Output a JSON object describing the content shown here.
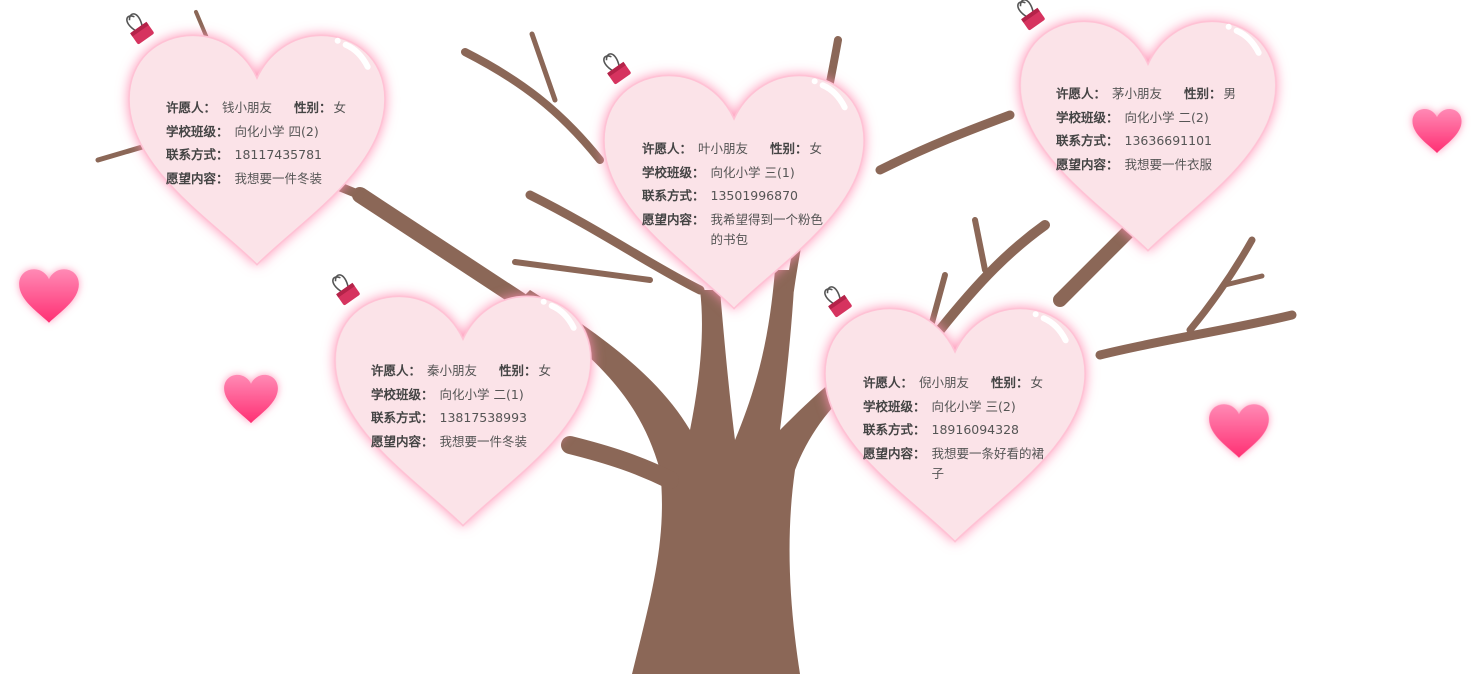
{
  "labels": {
    "wisher": "许愿人：",
    "gender": "性别：",
    "class": "学校班级：",
    "contact": "联系方式：",
    "wish": "愿望内容："
  },
  "colors": {
    "trunk": "#8b6757",
    "heart_fill": "#fbe3e8",
    "heart_glow": "#ff8fb3",
    "deco_heart": "#ff4f8e",
    "clip": "#d6335f"
  },
  "wishes": [
    {
      "name": "钱小朋友",
      "gender": "女",
      "class": "向化小学 四(2)",
      "contact": "18117435781",
      "wish": "我想要一件冬装"
    },
    {
      "name": "叶小朋友",
      "gender": "女",
      "class": "向化小学 三(1)",
      "contact": "13501996870",
      "wish": "我希望得到一个粉色的书包"
    },
    {
      "name": "茅小朋友",
      "gender": "男",
      "class": "向化小学  二(2)",
      "contact": "13636691101",
      "wish": "我想要一件衣服"
    },
    {
      "name": "秦小朋友",
      "gender": "女",
      "class": "向化小学  二(1)",
      "contact": "13817538993",
      "wish": "我想要一件冬装"
    },
    {
      "name": "倪小朋友",
      "gender": "女",
      "class": "向化小学 三(2)",
      "contact": "18916094328",
      "wish": "我想要一条好看的裙子"
    }
  ]
}
